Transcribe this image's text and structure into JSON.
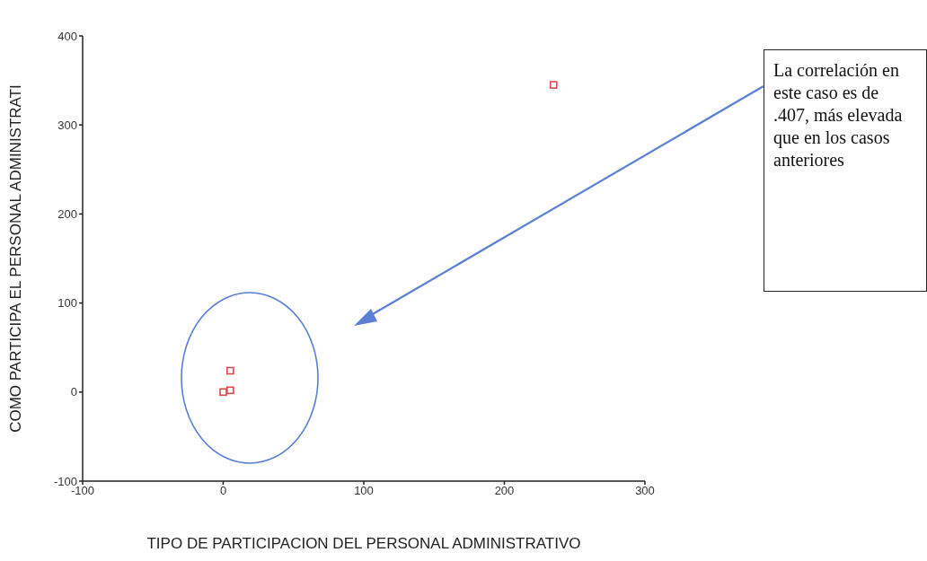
{
  "chart_data": {
    "type": "scatter",
    "xlabel": "TIPO DE PARTICIPACION DEL PERSONAL ADMINISTRATIVO",
    "ylabel": "COMO PARTICIPA EL PERSONAL ADMINISTRATI",
    "x": [
      235,
      5,
      0,
      5
    ],
    "values": [
      345,
      24,
      0,
      2
    ],
    "color": "#e0474c",
    "marker": "square",
    "xlim": [
      -100,
      300
    ],
    "xticks": [
      -100,
      0,
      100,
      200,
      300
    ],
    "ylim": [
      -100,
      400
    ],
    "yticks": [
      -100,
      0,
      100,
      200,
      300,
      400
    ],
    "annotations": [
      "La correlación en este caso es de .407, más elevada que en los casos anteriores"
    ]
  }
}
